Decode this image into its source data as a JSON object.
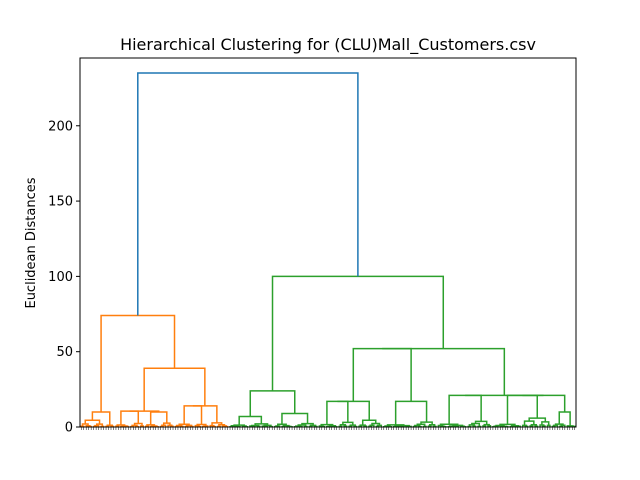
{
  "chart_data": {
    "type": "dendrogram",
    "title": "Hierarchical Clustering for (CLU)Mall_Customers.csv",
    "xlabel": "",
    "ylabel": "Euclidean Distances",
    "ylim": [
      0,
      245
    ],
    "yticks": [
      0,
      50,
      100,
      150,
      200
    ],
    "grid": false,
    "colors": {
      "root": "#1f77b4",
      "cluster_1": "#ff7f0e",
      "cluster_2": "#2ca02c"
    },
    "n_leaves": 200,
    "leaf_labels_note": "tiny rotated sample indices, illegible",
    "root_merge": {
      "height": 235,
      "left_child": 74,
      "right_child": 100
    },
    "clusters": [
      {
        "name": "cluster_1",
        "color": "#ff7f0e",
        "leaf_count": 60,
        "merges": [
          {
            "height": 74,
            "left": 10,
            "right": 39
          },
          {
            "height": 39,
            "left": 10,
            "right": 14
          },
          {
            "height": 10,
            "left": 3.5,
            "right": 4.5
          },
          {
            "height": 14,
            "left": 3,
            "right": 3.5
          },
          {
            "height": 10,
            "left": 3,
            "right": 5
          }
        ]
      },
      {
        "name": "cluster_2",
        "color": "#2ca02c",
        "leaf_count": 140,
        "merges": [
          {
            "height": 100,
            "left": 24,
            "right": 52
          },
          {
            "height": 24,
            "left": 7,
            "right": 9
          },
          {
            "height": 52,
            "left": 17,
            "right": 21
          },
          {
            "height": 17,
            "left": 6,
            "right": 6
          },
          {
            "height": 21,
            "left": 6,
            "right": 10
          },
          {
            "height": 10,
            "left": 4,
            "right": 4
          }
        ]
      }
    ]
  }
}
